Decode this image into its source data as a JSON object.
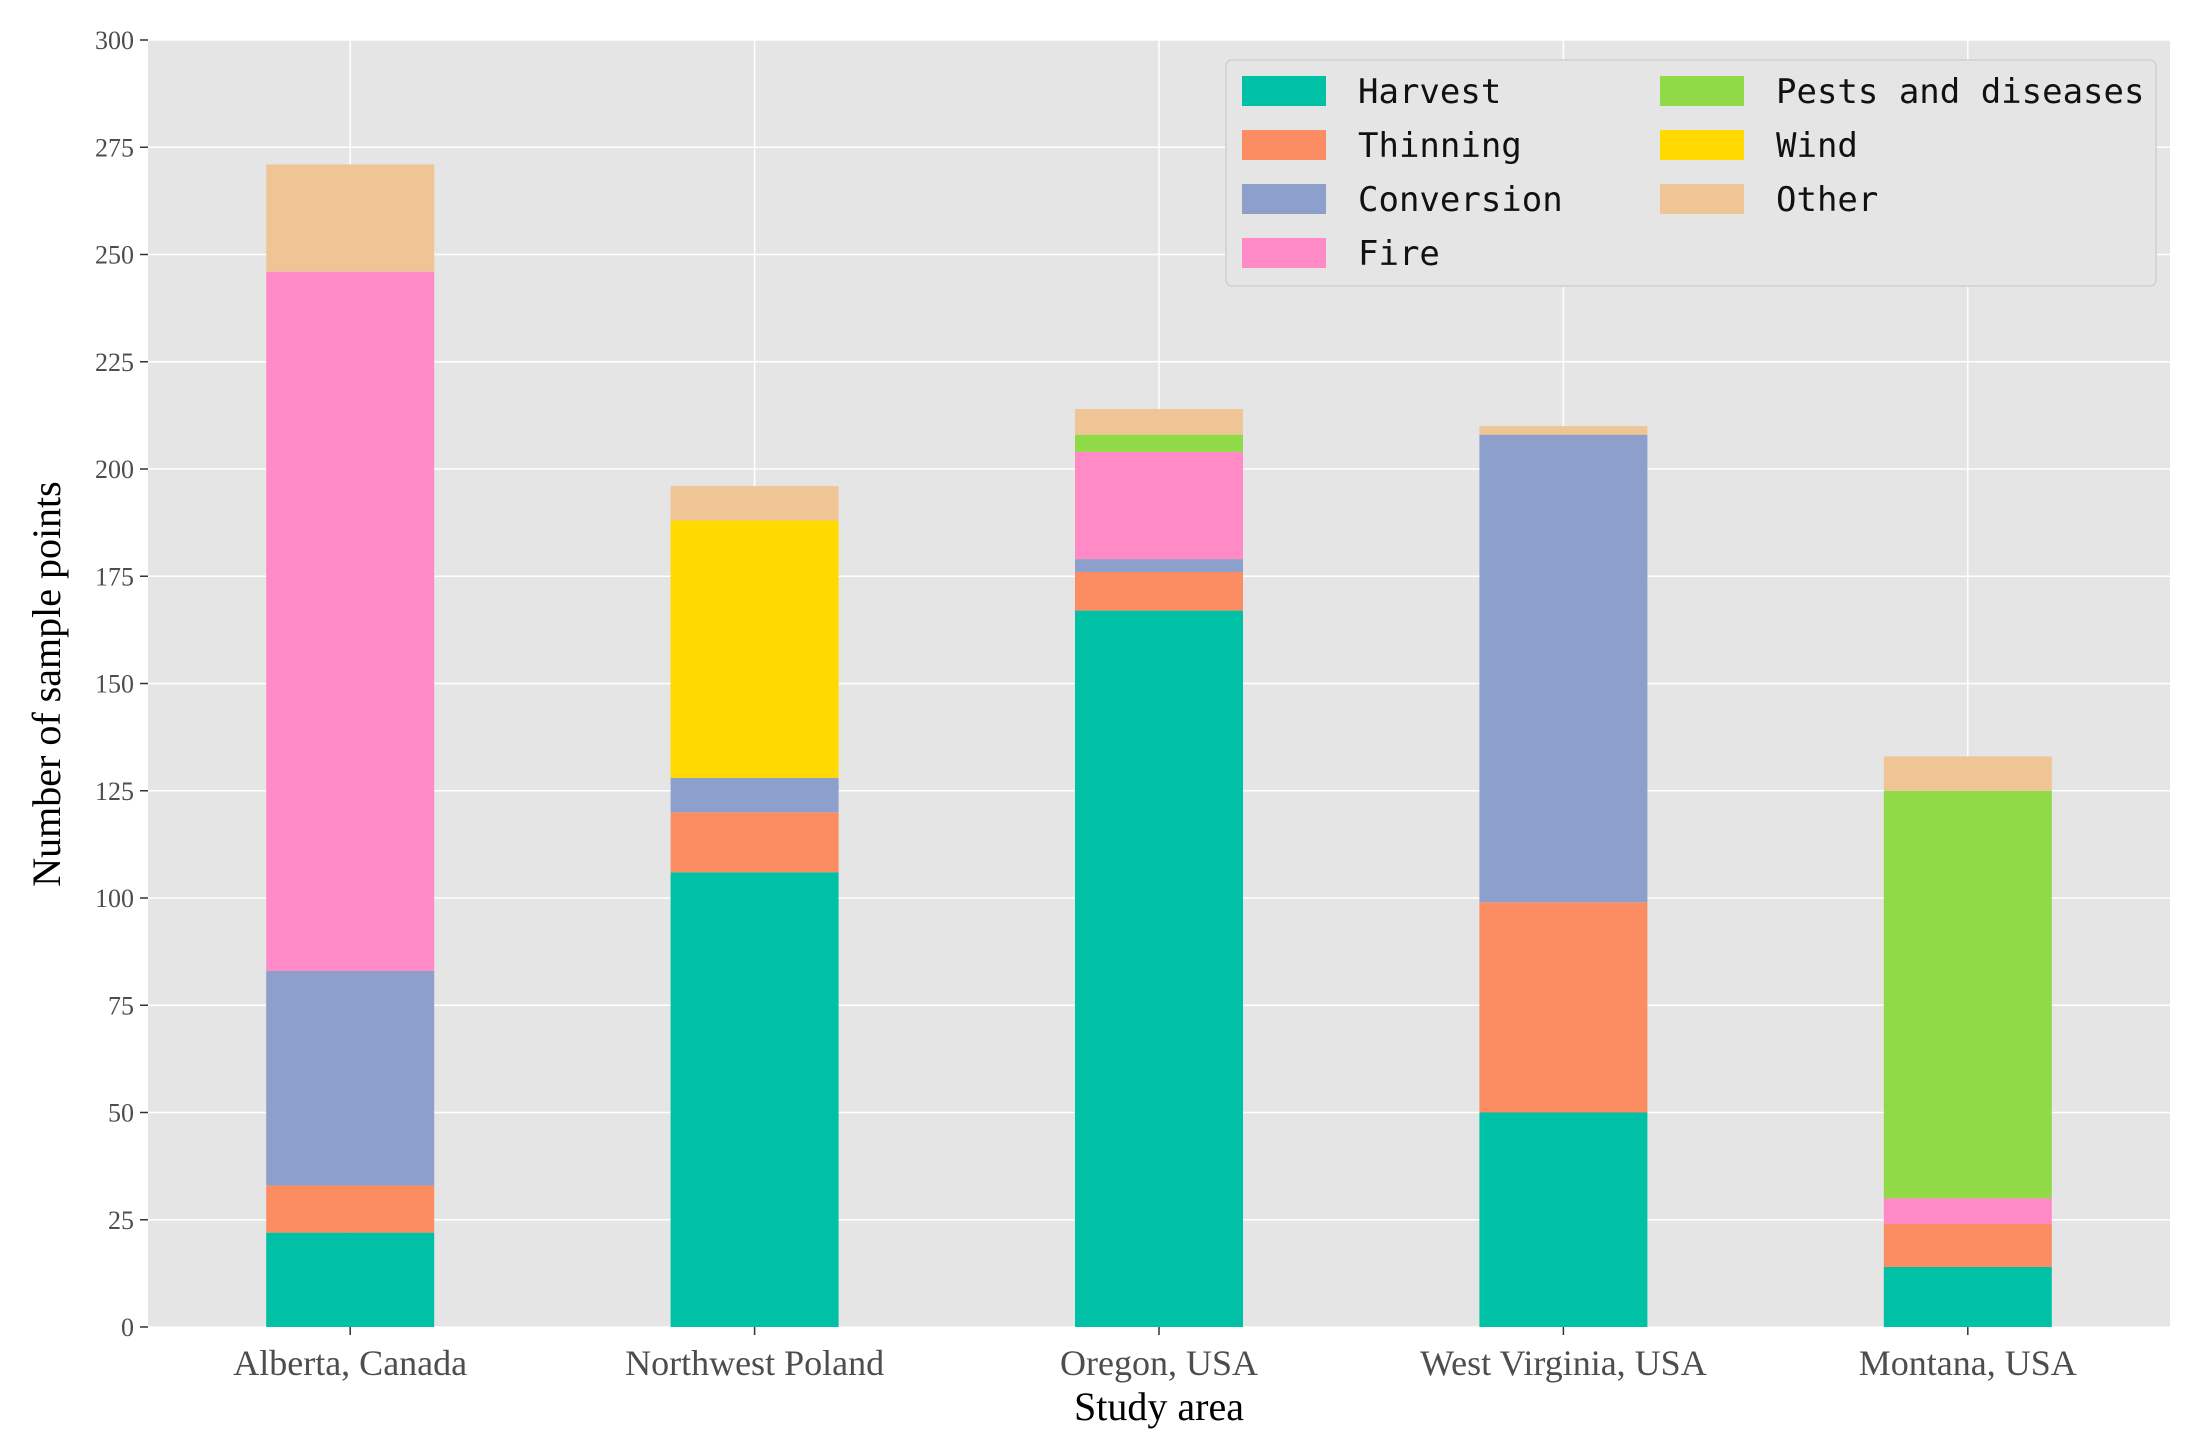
{
  "chart_data": {
    "type": "bar",
    "stacked": true,
    "title": "",
    "xlabel": "Study area",
    "ylabel": "Number of sample points",
    "ylim": [
      0,
      300
    ],
    "yticks": [
      0,
      25,
      50,
      75,
      100,
      125,
      150,
      175,
      200,
      225,
      250,
      275,
      300
    ],
    "grid": true,
    "legend_position": "top-right",
    "categories": [
      "Alberta, Canada",
      "Northwest Poland",
      "Oregon, USA",
      "West Virginia, USA",
      "Montana, USA"
    ],
    "series": [
      {
        "name": "Harvest",
        "color": "#00c1a5",
        "values": [
          22,
          106,
          167,
          50,
          14
        ]
      },
      {
        "name": "Thinning",
        "color": "#fc8d62",
        "values": [
          11,
          14,
          9,
          49,
          10
        ]
      },
      {
        "name": "Conversion",
        "color": "#8da0cb",
        "values": [
          50,
          8,
          3,
          109,
          0
        ]
      },
      {
        "name": "Fire",
        "color": "#ff8ac6",
        "values": [
          163,
          0,
          25,
          0,
          6
        ]
      },
      {
        "name": "Pests and diseases",
        "color": "#8fda46",
        "values": [
          0,
          0,
          4,
          0,
          95
        ]
      },
      {
        "name": "Wind",
        "color": "#ffd900",
        "values": [
          0,
          60,
          0,
          0,
          0
        ]
      },
      {
        "name": "Other",
        "color": "#f0c595",
        "values": [
          25,
          8,
          6,
          2,
          8
        ]
      }
    ],
    "legend_order": [
      "Harvest",
      "Thinning",
      "Conversion",
      "Fire",
      "Pests and diseases",
      "Wind",
      "Other"
    ],
    "plot_background": "#e5e5e5",
    "grid_color": "#ffffff"
  }
}
